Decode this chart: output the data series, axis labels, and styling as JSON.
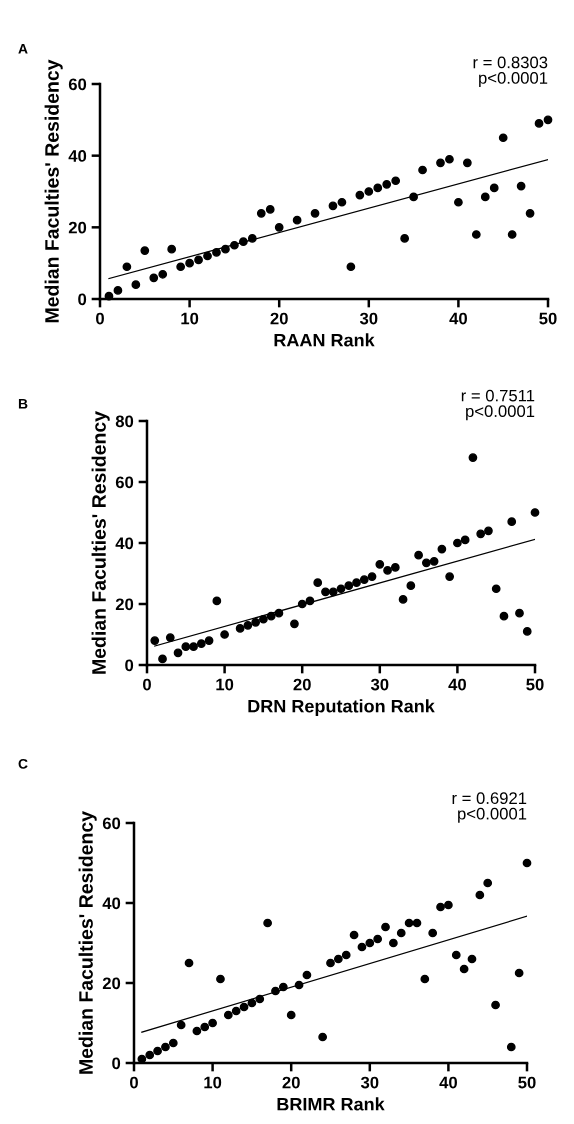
{
  "chart_data": [
    {
      "type": "scatter",
      "xlabel": "RAAN Rank",
      "ylabel": "Median Faculties' Residency",
      "xlim": [
        0,
        50
      ],
      "ylim": [
        0,
        60
      ],
      "xticks": [
        0,
        10,
        20,
        30,
        40,
        50
      ],
      "yticks": [
        0,
        20,
        40,
        60
      ],
      "grid": false,
      "legend": false,
      "annotations": [
        "A",
        "r = 0.8303\np<0.0001"
      ],
      "series": [
        {
          "marker": "circle",
          "color": "#000000",
          "x": [
            1,
            2,
            3,
            4,
            5,
            6,
            7,
            8,
            9,
            10,
            11,
            12,
            13,
            14,
            15,
            16,
            17,
            18,
            19,
            20,
            22,
            24,
            26,
            27,
            28,
            29,
            30,
            31,
            32,
            33,
            34,
            35,
            36,
            38,
            39,
            40,
            41,
            42,
            43,
            44,
            45,
            46,
            47,
            48,
            49,
            50
          ],
          "values": [
            0.8,
            2.4,
            9,
            4,
            13.5,
            5.9,
            6.9,
            13.9,
            9,
            10,
            10.9,
            12,
            13,
            13.9,
            15,
            16,
            16.9,
            23.9,
            25,
            20,
            22,
            23.9,
            26,
            27,
            9,
            29,
            30,
            31,
            32,
            33,
            16.9,
            28.5,
            36,
            38,
            39,
            27,
            38,
            18,
            28.5,
            31,
            45,
            18,
            31.5,
            23.9,
            49,
            50
          ]
        },
        {
          "type": "line",
          "color": "#000000",
          "x": [
            1,
            50
          ],
          "values": [
            5.7,
            38.9
          ]
        }
      ]
    },
    {
      "type": "scatter",
      "xlabel": "DRN Reputation Rank",
      "ylabel": "Median Faculties' Residency",
      "xlim": [
        0,
        50
      ],
      "ylim": [
        0,
        80
      ],
      "xticks": [
        0,
        10,
        20,
        30,
        40,
        50
      ],
      "yticks": [
        0,
        20,
        40,
        60,
        80
      ],
      "grid": false,
      "legend": false,
      "annotations": [
        "B",
        "r = 0.7511\np<0.0001"
      ],
      "series": [
        {
          "marker": "circle",
          "color": "#000000",
          "x": [
            1,
            2,
            3,
            4,
            5,
            6,
            7,
            8,
            9,
            10,
            12,
            13,
            14,
            15,
            16,
            17,
            19,
            20,
            21,
            22,
            23,
            24,
            25,
            26,
            27,
            28,
            29,
            30,
            31,
            32,
            33,
            34,
            35,
            36,
            37,
            38,
            39,
            40,
            41,
            42,
            43,
            44,
            45,
            46,
            47,
            48,
            49,
            50
          ],
          "values": [
            8,
            2,
            9,
            4,
            6,
            6,
            7,
            8,
            21,
            10,
            12,
            13,
            14,
            15,
            16,
            17,
            13.5,
            20,
            21,
            27,
            24,
            24,
            25,
            26,
            27,
            28,
            29,
            33,
            31,
            32,
            21.5,
            26,
            36,
            33.5,
            34,
            38,
            29,
            40,
            41,
            68,
            43,
            44,
            25,
            16,
            47,
            17,
            11,
            50
          ]
        },
        {
          "type": "line",
          "color": "#000000",
          "x": [
            1,
            50
          ],
          "values": [
            6.2,
            41.2
          ]
        }
      ]
    },
    {
      "type": "scatter",
      "xlabel": "BRIMR Rank",
      "ylabel": "Median Faculties' Residency",
      "xlim": [
        0,
        50
      ],
      "ylim": [
        0,
        60
      ],
      "xticks": [
        0,
        10,
        20,
        30,
        40,
        50
      ],
      "yticks": [
        0,
        20,
        40,
        60
      ],
      "grid": false,
      "legend": false,
      "annotations": [
        "C",
        "r = 0.6921\np<0.0001"
      ],
      "series": [
        {
          "marker": "circle",
          "color": "#000000",
          "x": [
            1,
            2,
            3,
            4,
            5,
            6,
            7,
            8,
            9,
            10,
            11,
            12,
            13,
            14,
            15,
            16,
            17,
            18,
            19,
            20,
            21,
            22,
            24,
            25,
            26,
            27,
            28,
            29,
            30,
            31,
            32,
            33,
            34,
            35,
            36,
            37,
            38,
            39,
            40,
            41,
            42,
            43,
            44,
            45,
            46,
            48,
            49,
            50
          ],
          "values": [
            1,
            2,
            3,
            4,
            5,
            9.5,
            25,
            8,
            9,
            10,
            21,
            12,
            13,
            14,
            15,
            16,
            35,
            18,
            19,
            12,
            19.5,
            22,
            6.5,
            25,
            26,
            27,
            32,
            29,
            30,
            31,
            34,
            30,
            32.5,
            35,
            35,
            21,
            32.5,
            39,
            39.5,
            27,
            23.5,
            26,
            42,
            45,
            14.5,
            4,
            22.5,
            50
          ]
        },
        {
          "type": "line",
          "color": "#000000",
          "x": [
            1,
            50
          ],
          "values": [
            7.7,
            36.7
          ]
        }
      ]
    }
  ]
}
